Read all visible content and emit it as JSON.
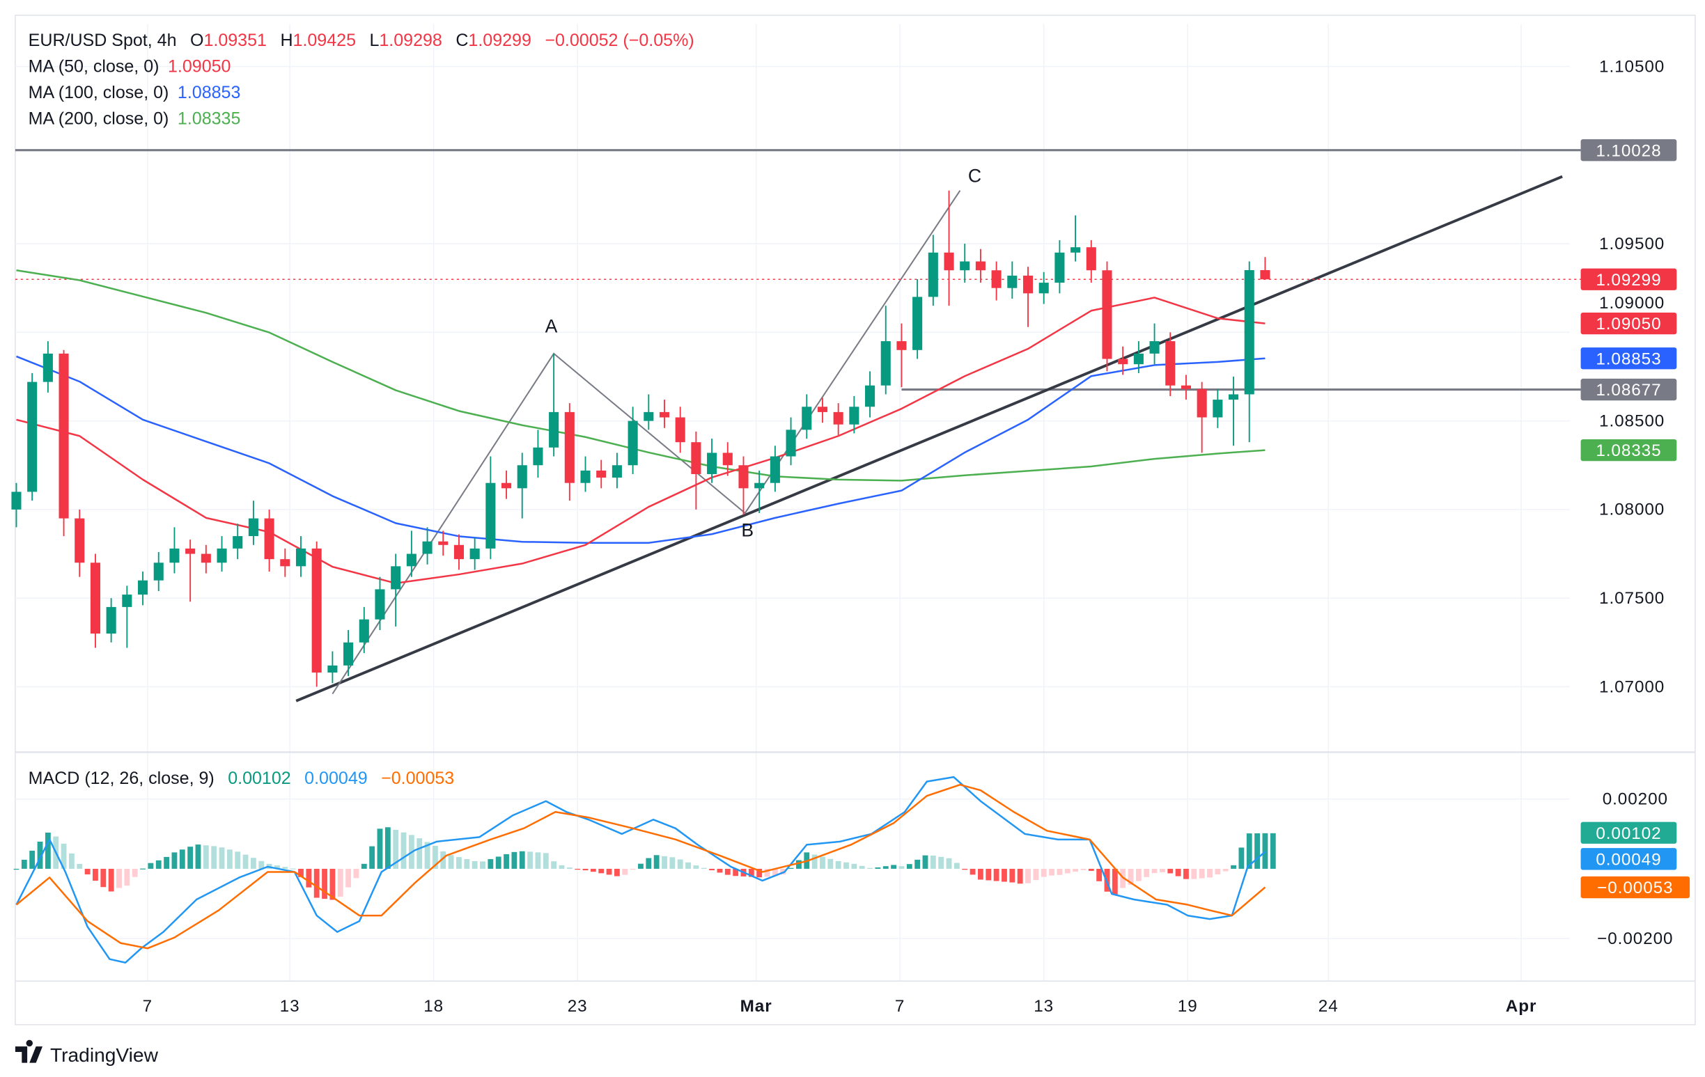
{
  "header": {
    "symbol": "EUR/USD Spot, 4h",
    "o_label": "O",
    "o": "1.09351",
    "h_label": "H",
    "h": "1.09425",
    "l_label": "L",
    "l": "1.09298",
    "c_label": "C",
    "c": "1.09299",
    "change": "−0.00052 (−0.05%)"
  },
  "indicators": [
    {
      "label": "MA (50, close, 0)",
      "value": "1.09050",
      "color": "#f23645"
    },
    {
      "label": "MA (100, close, 0)",
      "value": "1.08853",
      "color": "#2962ff"
    },
    {
      "label": "MA (200, close, 0)",
      "value": "1.08335",
      "color": "#4caf50"
    }
  ],
  "macd_legend": {
    "label": "MACD (12, 26, close, 9)",
    "hist": "0.00102",
    "macd": "0.00049",
    "signal": "−0.00053",
    "hist_color": "#089981",
    "macd_color": "#2196f3",
    "signal_color": "#ff6d00"
  },
  "axis_tags": {
    "resistance": "1.10028",
    "last": "1.09299",
    "ma50": "1.09050",
    "ma100": "1.08853",
    "support": "1.08677",
    "ma200": "1.08335",
    "hist": "0.00102",
    "macd": "0.00049",
    "signal": "−0.00053"
  },
  "annotations": {
    "a": "A",
    "b": "B",
    "c": "C"
  },
  "footer": {
    "brand": "TradingView"
  },
  "chart_data": {
    "type": "candlestick",
    "colors": {
      "up": "#089981",
      "down": "#f23645"
    },
    "y_ticks": [
      "1.10500",
      "1.09500",
      "1.09000",
      "1.08500",
      "1.08000",
      "1.07500",
      "1.07000"
    ],
    "ylim": [
      1.0665,
      1.1075
    ],
    "x_ticks": [
      {
        "label": "7",
        "index": 8.3
      },
      {
        "label": "13",
        "index": 17.3
      },
      {
        "label": "18",
        "index": 26.4
      },
      {
        "label": "23",
        "index": 35.5
      },
      {
        "label": "Mar",
        "index": 46.8
      },
      {
        "label": "7",
        "index": 55.9
      },
      {
        "label": "13",
        "index": 65
      },
      {
        "label": "19",
        "index": 74.1
      },
      {
        "label": "24",
        "index": 83
      },
      {
        "label": "Apr",
        "index": 95.2
      }
    ],
    "close": [
      1.081,
      1.0872,
      1.0888,
      1.0795,
      1.077,
      1.073,
      1.0745,
      1.0752,
      1.076,
      1.077,
      1.0778,
      1.0775,
      1.077,
      1.0778,
      1.0785,
      1.0795,
      1.0772,
      1.0768,
      1.0778,
      1.0708,
      1.0712,
      1.0725,
      1.0738,
      1.0755,
      1.0768,
      1.0775,
      1.0782,
      1.078,
      1.0772,
      1.0778,
      1.0815,
      1.0812,
      1.0825,
      1.0835,
      1.0855,
      1.0815,
      1.0822,
      1.0818,
      1.0825,
      1.085,
      1.0855,
      1.0852,
      1.0838,
      1.082,
      1.0832,
      1.0825,
      1.0812,
      1.0815,
      1.083,
      1.0845,
      1.0858,
      1.0855,
      1.0848,
      1.0858,
      1.087,
      1.0895,
      1.089,
      1.092,
      1.0945,
      1.0935,
      1.094,
      1.0935,
      1.0925,
      1.0932,
      1.0922,
      1.0928,
      1.0945,
      1.0948,
      1.0935,
      1.0885,
      1.0882,
      1.0888,
      1.0895,
      1.087,
      1.0868,
      1.0852,
      1.0862,
      1.0865,
      1.09351,
      1.09299
    ],
    "high": [
      1.0815,
      1.0877,
      1.0895,
      1.089,
      1.08,
      1.0775,
      1.075,
      1.0757,
      1.0765,
      1.0776,
      1.079,
      1.0783,
      1.078,
      1.0785,
      1.0792,
      1.0805,
      1.08,
      1.0778,
      1.0785,
      1.0782,
      1.072,
      1.0732,
      1.0745,
      1.0762,
      1.0775,
      1.0788,
      1.079,
      1.0788,
      1.0786,
      1.0784,
      1.083,
      1.0822,
      1.0832,
      1.0845,
      1.0888,
      1.086,
      1.083,
      1.0828,
      1.0832,
      1.0858,
      1.0865,
      1.0862,
      1.0858,
      1.0844,
      1.084,
      1.0838,
      1.083,
      1.0822,
      1.0836,
      1.0852,
      1.0865,
      1.0863,
      1.086,
      1.0864,
      1.0878,
      1.0915,
      1.0905,
      1.093,
      1.0955,
      1.098,
      1.095,
      1.0947,
      1.094,
      1.094,
      1.0937,
      1.0934,
      1.0952,
      1.0966,
      1.0952,
      1.094,
      1.0892,
      1.0895,
      1.0905,
      1.09,
      1.0876,
      1.0872,
      1.0868,
      1.0875,
      1.094,
      1.09425
    ],
    "low": [
      1.079,
      1.0805,
      1.0866,
      1.0785,
      1.0762,
      1.0722,
      1.0725,
      1.0722,
      1.0746,
      1.0754,
      1.0764,
      1.0748,
      1.0764,
      1.0765,
      1.0772,
      1.078,
      1.0765,
      1.0762,
      1.0762,
      1.07,
      1.0702,
      1.0706,
      1.0719,
      1.0732,
      1.0734,
      1.0762,
      1.0769,
      1.0774,
      1.0766,
      1.0766,
      1.0772,
      1.0806,
      1.0795,
      1.0818,
      1.083,
      1.0805,
      1.081,
      1.0812,
      1.0812,
      1.082,
      1.0845,
      1.0846,
      1.0832,
      1.08,
      1.0815,
      1.0819,
      1.0797,
      1.0798,
      1.081,
      1.0825,
      1.084,
      1.0849,
      1.0842,
      1.0843,
      1.0852,
      1.0865,
      1.0869,
      1.0885,
      1.0915,
      1.0915,
      1.0928,
      1.0928,
      1.0918,
      1.0919,
      1.0903,
      1.0916,
      1.0922,
      1.094,
      1.0928,
      1.0878,
      1.0876,
      1.0877,
      1.0882,
      1.0864,
      1.0862,
      1.0832,
      1.0846,
      1.0836,
      1.0838,
      1.09298
    ],
    "first_open": 1.08,
    "moving_averages": {
      "sample_index": [
        0,
        4,
        8,
        12,
        16,
        20,
        24,
        28,
        32,
        36,
        40,
        44,
        48,
        52,
        56,
        60,
        64,
        68,
        72,
        76,
        79
      ],
      "ma50": [
        1.08507,
        1.08415,
        1.08169,
        1.07953,
        1.07873,
        1.07677,
        1.07584,
        1.07634,
        1.07695,
        1.078,
        1.08015,
        1.08181,
        1.08292,
        1.08415,
        1.08569,
        1.08753,
        1.08907,
        1.09122,
        1.09196,
        1.09079,
        1.0905
      ],
      "ma100": [
        1.08864,
        1.08722,
        1.08507,
        1.08384,
        1.08261,
        1.08076,
        1.07923,
        1.07849,
        1.07818,
        1.07812,
        1.07812,
        1.07861,
        1.07953,
        1.08033,
        1.08107,
        1.08322,
        1.08507,
        1.08753,
        1.08815,
        1.08833,
        1.08853
      ],
      "ma200": [
        1.0935,
        1.09294,
        1.09202,
        1.0911,
        1.08999,
        1.08833,
        1.08673,
        1.08556,
        1.08476,
        1.08409,
        1.08322,
        1.08243,
        1.08187,
        1.08169,
        1.08163,
        1.08193,
        1.08218,
        1.08243,
        1.08286,
        1.08316,
        1.08335
      ]
    },
    "drawings": {
      "resistance_level": 1.10028,
      "support_level": {
        "price": 1.08677,
        "from_index": 56
      },
      "trendline": [
        [
          17.7,
          1.0692
        ],
        [
          97.8,
          1.09879
        ]
      ],
      "abc_path": [
        [
          20,
          1.0696
        ],
        [
          34,
          1.0888
        ],
        [
          46.1,
          1.0798
        ],
        [
          59.7,
          1.098
        ]
      ]
    },
    "macd": {
      "y_ticks": [
        {
          "label": "0.00200",
          "value": 0.002
        },
        {
          "label": "−0.00200",
          "value": -0.002
        }
      ],
      "macd_line": [
        [
          0,
          -0.00103
        ],
        [
          2.1,
          0.00084
        ],
        [
          3.1,
          -9e-05
        ],
        [
          4.5,
          -0.00166
        ],
        [
          5.9,
          -0.00259
        ],
        [
          6.9,
          -0.00269
        ],
        [
          7.9,
          -0.00228
        ],
        [
          9.3,
          -0.00181
        ],
        [
          11.4,
          -0.00088
        ],
        [
          14.1,
          -0.00025
        ],
        [
          15.9,
          6e-05
        ],
        [
          17.6,
          -9e-05
        ],
        [
          19,
          -0.00134
        ],
        [
          20.3,
          -0.00181
        ],
        [
          21.7,
          -0.0015
        ],
        [
          23.1,
          -9e-05
        ],
        [
          25.2,
          0.00053
        ],
        [
          26.6,
          0.00078
        ],
        [
          29.3,
          0.00091
        ],
        [
          31.4,
          0.00153
        ],
        [
          33.5,
          0.00194
        ],
        [
          34.8,
          0.00163
        ],
        [
          36.2,
          0.00141
        ],
        [
          38.3,
          0.001
        ],
        [
          40.3,
          0.00141
        ],
        [
          41.7,
          0.00116
        ],
        [
          43.1,
          0.00069
        ],
        [
          45.2,
          6e-05
        ],
        [
          47.2,
          -0.00034
        ],
        [
          48.6,
          -9e-05
        ],
        [
          50,
          0.00069
        ],
        [
          52.1,
          0.00078
        ],
        [
          54.1,
          0.001
        ],
        [
          56.2,
          0.00163
        ],
        [
          57.6,
          0.0025
        ],
        [
          59.3,
          0.00263
        ],
        [
          61,
          0.00194
        ],
        [
          63.8,
          0.001
        ],
        [
          65.9,
          0.00084
        ],
        [
          67.9,
          0.00084
        ],
        [
          69.3,
          -0.00072
        ],
        [
          70.7,
          -0.00088
        ],
        [
          72.8,
          -0.00103
        ],
        [
          74.1,
          -0.00134
        ],
        [
          75.5,
          -0.00144
        ],
        [
          76.9,
          -0.00134
        ],
        [
          77.9,
          6e-05
        ],
        [
          79,
          0.00049
        ]
      ],
      "signal_line": [
        [
          0,
          -0.00103
        ],
        [
          2.1,
          -0.00025
        ],
        [
          4.5,
          -0.0015
        ],
        [
          6.6,
          -0.00213
        ],
        [
          8.3,
          -0.00228
        ],
        [
          10,
          -0.00197
        ],
        [
          12.8,
          -0.00119
        ],
        [
          15.9,
          -9e-05
        ],
        [
          17.6,
          -9e-05
        ],
        [
          19.7,
          -0.00072
        ],
        [
          21.7,
          -0.00134
        ],
        [
          23.1,
          -0.00134
        ],
        [
          25.2,
          -0.00041
        ],
        [
          27.2,
          0.00038
        ],
        [
          30,
          0.00084
        ],
        [
          32.1,
          0.00116
        ],
        [
          34.1,
          0.00163
        ],
        [
          36.2,
          0.00147
        ],
        [
          39,
          0.00116
        ],
        [
          41.7,
          0.00084
        ],
        [
          44.5,
          0.00038
        ],
        [
          47.2,
          -9e-05
        ],
        [
          50,
          0.00022
        ],
        [
          52.8,
          0.00069
        ],
        [
          55.5,
          0.00131
        ],
        [
          57.6,
          0.00209
        ],
        [
          59.7,
          0.00241
        ],
        [
          61,
          0.00225
        ],
        [
          63.1,
          0.00163
        ],
        [
          65.2,
          0.00109
        ],
        [
          67.9,
          0.00084
        ],
        [
          70,
          -0.00025
        ],
        [
          72.1,
          -0.00088
        ],
        [
          74.1,
          -0.00103
        ],
        [
          75.5,
          -0.00119
        ],
        [
          76.9,
          -0.00134
        ],
        [
          79,
          -0.00053
        ]
      ],
      "hist_colors": {
        "pos_rising": "#26a69a",
        "pos_falling": "#b2dfdb",
        "neg_falling": "#ff5252",
        "neg_rising": "#ffcdd2"
      }
    }
  }
}
